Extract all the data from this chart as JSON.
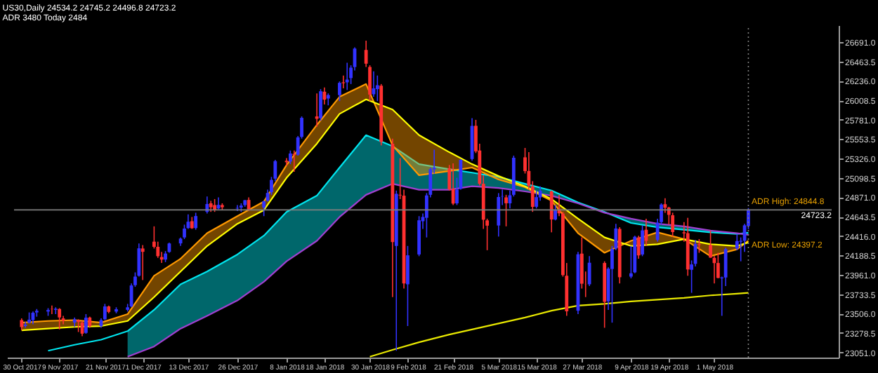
{
  "chart_data": {
    "type": "candlestick",
    "title": "US30,Daily  24534.2 24745.2 24496.8 24723.2",
    "subtitle": "ADR 3480  Today 2484",
    "x": [
      "2017-10-30",
      "2017-10-31",
      "2017-11-01",
      "2017-11-02",
      "2017-11-03",
      "2017-11-06",
      "2017-11-07",
      "2017-11-08",
      "2017-11-09",
      "2017-11-10",
      "2017-11-13",
      "2017-11-14",
      "2017-11-15",
      "2017-11-16",
      "2017-11-17",
      "2017-11-20",
      "2017-11-21",
      "2017-11-22",
      "2017-11-24",
      "2017-11-27",
      "2017-11-28",
      "2017-11-29",
      "2017-11-30",
      "2017-12-01",
      "2017-12-04",
      "2017-12-05",
      "2017-12-06",
      "2017-12-07",
      "2017-12-08",
      "2017-12-11",
      "2017-12-12",
      "2017-12-13",
      "2017-12-14",
      "2017-12-15",
      "2017-12-18",
      "2017-12-19",
      "2017-12-20",
      "2017-12-21",
      "2017-12-22",
      "2017-12-26",
      "2017-12-27",
      "2017-12-28",
      "2017-12-29",
      "2018-01-02",
      "2018-01-03",
      "2018-01-04",
      "2018-01-05",
      "2018-01-08",
      "2018-01-09",
      "2018-01-10",
      "2018-01-11",
      "2018-01-12",
      "2018-01-16",
      "2018-01-17",
      "2018-01-18",
      "2018-01-19",
      "2018-01-22",
      "2018-01-23",
      "2018-01-24",
      "2018-01-25",
      "2018-01-26",
      "2018-01-29",
      "2018-01-30",
      "2018-01-31",
      "2018-02-01",
      "2018-02-02",
      "2018-02-05",
      "2018-02-06",
      "2018-02-07",
      "2018-02-08",
      "2018-02-09",
      "2018-02-12",
      "2018-02-13",
      "2018-02-14",
      "2018-02-15",
      "2018-02-16",
      "2018-02-20",
      "2018-02-21",
      "2018-02-22",
      "2018-02-23",
      "2018-02-26",
      "2018-02-27",
      "2018-02-28",
      "2018-03-01",
      "2018-03-02",
      "2018-03-05",
      "2018-03-06",
      "2018-03-07",
      "2018-03-08",
      "2018-03-09",
      "2018-03-12",
      "2018-03-13",
      "2018-03-14",
      "2018-03-15",
      "2018-03-16",
      "2018-03-19",
      "2018-03-20",
      "2018-03-21",
      "2018-03-22",
      "2018-03-23",
      "2018-03-26",
      "2018-03-27",
      "2018-03-28",
      "2018-03-29",
      "2018-04-02",
      "2018-04-03",
      "2018-04-04",
      "2018-04-05",
      "2018-04-06",
      "2018-04-09",
      "2018-04-10",
      "2018-04-11",
      "2018-04-12",
      "2018-04-13",
      "2018-04-16",
      "2018-04-17",
      "2018-04-18",
      "2018-04-19",
      "2018-04-20",
      "2018-04-23",
      "2018-04-24",
      "2018-04-25",
      "2018-04-26",
      "2018-04-27",
      "2018-04-30",
      "2018-05-01",
      "2018-05-02",
      "2018-05-03",
      "2018-05-04",
      "2018-05-07",
      "2018-05-08",
      "2018-05-09",
      "2018-05-10"
    ],
    "ohlc": [
      [
        23430,
        23450,
        23310,
        23348
      ],
      [
        23360,
        23410,
        23340,
        23377
      ],
      [
        23400,
        23520,
        23390,
        23435
      ],
      [
        23430,
        23530,
        23380,
        23516
      ],
      [
        23520,
        23560,
        23470,
        23539
      ],
      [
        23530,
        23570,
        23480,
        23548
      ],
      [
        23560,
        23600,
        23500,
        23557
      ],
      [
        23550,
        23580,
        23500,
        23563
      ],
      [
        23560,
        23570,
        23320,
        23461
      ],
      [
        23450,
        23480,
        23380,
        23422
      ],
      [
        23400,
        23460,
        23350,
        23439
      ],
      [
        23430,
        23440,
        23290,
        23409
      ],
      [
        23400,
        23420,
        23240,
        23271
      ],
      [
        23280,
        23500,
        23270,
        23458
      ],
      [
        23460,
        23470,
        23340,
        23358
      ],
      [
        23360,
        23450,
        23340,
        23430
      ],
      [
        23440,
        23620,
        23430,
        23590
      ],
      [
        23590,
        23600,
        23510,
        23526
      ],
      [
        23530,
        23580,
        23510,
        23557
      ],
      [
        23550,
        23620,
        23530,
        23580
      ],
      [
        23590,
        23860,
        23580,
        23836
      ],
      [
        23840,
        23990,
        23820,
        23940
      ],
      [
        23950,
        24330,
        23940,
        24272
      ],
      [
        24270,
        24310,
        23900,
        24231
      ],
      [
        24350,
        24530,
        24270,
        24290
      ],
      [
        24290,
        24350,
        24160,
        24180
      ],
      [
        24170,
        24230,
        24100,
        24140
      ],
      [
        24140,
        24240,
        24110,
        24211
      ],
      [
        24230,
        24340,
        24220,
        24329
      ],
      [
        24330,
        24400,
        24300,
        24386
      ],
      [
        24400,
        24550,
        24380,
        24504
      ],
      [
        24510,
        24670,
        24500,
        24585
      ],
      [
        24590,
        24640,
        24500,
        24508
      ],
      [
        24510,
        24690,
        24490,
        24651
      ],
      [
        24700,
        24880,
        24680,
        24792
      ],
      [
        24800,
        24830,
        24700,
        24754
      ],
      [
        24780,
        24850,
        24700,
        24726
      ],
      [
        24740,
        24870,
        24730,
        24782
      ],
      [
        24780,
        24800,
        24720,
        24754
      ],
      [
        24740,
        24780,
        24710,
        24746
      ],
      [
        24750,
        24800,
        24700,
        24774
      ],
      [
        24780,
        24840,
        24760,
        24837
      ],
      [
        24840,
        24870,
        24710,
        24719
      ],
      [
        24750,
        24830,
        24650,
        24824
      ],
      [
        24830,
        24960,
        24820,
        24922
      ],
      [
        24930,
        25110,
        24900,
        25075
      ],
      [
        25090,
        25310,
        25060,
        25295
      ],
      [
        25300,
        25330,
        25240,
        25283
      ],
      [
        25290,
        25420,
        25260,
        25385
      ],
      [
        25380,
        25420,
        25170,
        25369
      ],
      [
        25370,
        25590,
        25360,
        25574
      ],
      [
        25580,
        25820,
        25560,
        25803
      ],
      [
        25820,
        26090,
        25700,
        25792
      ],
      [
        25800,
        26140,
        25770,
        26115
      ],
      [
        26110,
        26160,
        25960,
        26017
      ],
      [
        26030,
        26090,
        25950,
        26071
      ],
      [
        26070,
        26230,
        26000,
        26214
      ],
      [
        26220,
        26300,
        26150,
        26210
      ],
      [
        26220,
        26450,
        26130,
        26252
      ],
      [
        26270,
        26420,
        26200,
        26392
      ],
      [
        26400,
        26630,
        26360,
        26616
      ],
      [
        26600,
        26710,
        26400,
        26439
      ],
      [
        26400,
        26420,
        26000,
        26076
      ],
      [
        26080,
        26350,
        26050,
        26149
      ],
      [
        26140,
        26300,
        26000,
        26186
      ],
      [
        26180,
        26200,
        25480,
        25520
      ],
      [
        25500,
        25560,
        23700,
        24345
      ],
      [
        24300,
        24950,
        23070,
        24912
      ],
      [
        24900,
        25330,
        24850,
        24893
      ],
      [
        24890,
        24960,
        23800,
        23860
      ],
      [
        23850,
        24300,
        23360,
        24190
      ],
      [
        24200,
        24650,
        24180,
        24601
      ],
      [
        24590,
        24680,
        24500,
        24640
      ],
      [
        24630,
        24920,
        24400,
        24893
      ],
      [
        24900,
        25220,
        24870,
        25200
      ],
      [
        25200,
        25430,
        25150,
        25219
      ],
      [
        25210,
        25250,
        24950,
        24964
      ],
      [
        24970,
        25270,
        24780,
        24797
      ],
      [
        24800,
        25100,
        24780,
        24962
      ],
      [
        24970,
        25320,
        24960,
        25310
      ],
      [
        25320,
        25800,
        25300,
        25709
      ],
      [
        25710,
        25780,
        25390,
        25410
      ],
      [
        25420,
        25500,
        25010,
        25029
      ],
      [
        25030,
        25130,
        24500,
        24608
      ],
      [
        24600,
        24620,
        24250,
        24538
      ],
      [
        24540,
        24920,
        24410,
        24874
      ],
      [
        24880,
        24960,
        24780,
        24884
      ],
      [
        24870,
        24900,
        24530,
        24801
      ],
      [
        24800,
        24950,
        24740,
        24895
      ],
      [
        24900,
        25360,
        24880,
        25335
      ],
      [
        25340,
        25450,
        25150,
        25178
      ],
      [
        25180,
        25400,
        24960,
        25007
      ],
      [
        25000,
        25060,
        24700,
        24759
      ],
      [
        24760,
        24950,
        24740,
        24873
      ],
      [
        24870,
        25000,
        24830,
        24947
      ],
      [
        24940,
        24950,
        24460,
        24611
      ],
      [
        24610,
        24780,
        24600,
        24727
      ],
      [
        24730,
        24900,
        24650,
        24683
      ],
      [
        24680,
        24700,
        23940,
        23958
      ],
      [
        23950,
        24100,
        23480,
        23533
      ],
      [
        23540,
        24230,
        23500,
        24202
      ],
      [
        24210,
        24400,
        23800,
        23857
      ],
      [
        23850,
        24000,
        23700,
        23849
      ],
      [
        23850,
        24180,
        23830,
        24103
      ],
      [
        24100,
        24120,
        23340,
        23644
      ],
      [
        23650,
        24050,
        23550,
        24033
      ],
      [
        24030,
        24300,
        23400,
        24264
      ],
      [
        24270,
        24560,
        24250,
        24505
      ],
      [
        24500,
        24520,
        23860,
        23933
      ],
      [
        23940,
        24300,
        23920,
        23979
      ],
      [
        23990,
        24420,
        23980,
        24408
      ],
      [
        24400,
        24420,
        24150,
        24189
      ],
      [
        24200,
        24540,
        24180,
        24483
      ],
      [
        24490,
        24620,
        24300,
        24360
      ],
      [
        24370,
        24620,
        24350,
        24573
      ],
      [
        24580,
        24800,
        24550,
        24786
      ],
      [
        24790,
        24860,
        24690,
        24748
      ],
      [
        24750,
        24760,
        24550,
        24665
      ],
      [
        24660,
        24690,
        24410,
        24463
      ],
      [
        24460,
        24580,
        24350,
        24448
      ],
      [
        24450,
        24630,
        23950,
        24024
      ],
      [
        24020,
        24130,
        23750,
        24083
      ],
      [
        24090,
        24370,
        24060,
        24322
      ],
      [
        24320,
        24380,
        24220,
        24311
      ],
      [
        24310,
        24480,
        24160,
        24163
      ],
      [
        24160,
        24180,
        23860,
        24099
      ],
      [
        24100,
        24220,
        23920,
        23925
      ],
      [
        23920,
        23940,
        23480,
        23930
      ],
      [
        23930,
        24280,
        23830,
        24263
      ],
      [
        24270,
        24440,
        24250,
        24357
      ],
      [
        24350,
        24400,
        24120,
        24360
      ],
      [
        24360,
        24560,
        24230,
        24542
      ],
      [
        24534.2,
        24745.2,
        24496.8,
        24723.2
      ]
    ],
    "colors": [
      "#ff3030",
      "#3232ff",
      "#3232ff",
      "#3232ff",
      "#3232ff",
      "#3232ff",
      "#ff3030",
      "#3232ff",
      "#ff3030",
      "#ff3030",
      "#3232ff",
      "#ff3030",
      "#ff3030",
      "#3232ff",
      "#ff3030",
      "#3232ff",
      "#3232ff",
      "#ff3030",
      "#3232ff",
      "#3232ff",
      "#3232ff",
      "#3232ff",
      "#3232ff",
      "#ff3030",
      "#ff3030",
      "#ff3030",
      "#ff3030",
      "#3232ff",
      "#3232ff",
      "#3232ff",
      "#3232ff",
      "#3232ff",
      "#ff3030",
      "#3232ff",
      "#3232ff",
      "#ff3030",
      "#ff3030",
      "#3232ff",
      "#ff3030",
      "#3232ff",
      "#3232ff",
      "#3232ff",
      "#ff3030",
      "#3232ff",
      "#3232ff",
      "#3232ff",
      "#3232ff",
      "#ff3030",
      "#3232ff",
      "#ff3030",
      "#3232ff",
      "#3232ff",
      "#ff3030",
      "#3232ff",
      "#ff3030",
      "#3232ff",
      "#3232ff",
      "#ff3030",
      "#3232ff",
      "#3232ff",
      "#3232ff",
      "#ff3030",
      "#ff3030",
      "#3232ff",
      "#3232ff",
      "#ff3030",
      "#ff3030",
      "#3232ff",
      "#ff3030",
      "#ff3030",
      "#3232ff",
      "#3232ff",
      "#3232ff",
      "#3232ff",
      "#3232ff",
      "#3232ff",
      "#ff3030",
      "#ff3030",
      "#3232ff",
      "#3232ff",
      "#3232ff",
      "#ff3030",
      "#ff3030",
      "#ff3030",
      "#ff3030",
      "#3232ff",
      "#3232ff",
      "#ff3030",
      "#3232ff",
      "#3232ff",
      "#ff3030",
      "#ff3030",
      "#ff3030",
      "#3232ff",
      "#3232ff",
      "#ff3030",
      "#3232ff",
      "#ff3030",
      "#ff3030",
      "#ff3030",
      "#3232ff",
      "#ff3030",
      "#ff3030",
      "#3232ff",
      "#ff3030",
      "#3232ff",
      "#3232ff",
      "#3232ff",
      "#ff3030",
      "#3232ff",
      "#3232ff",
      "#ff3030",
      "#3232ff",
      "#ff3030",
      "#3232ff",
      "#3232ff",
      "#ff3030",
      "#ff3030",
      "#ff3030",
      "#ff3030",
      "#ff3030",
      "#3232ff",
      "#3232ff",
      "#ff3030",
      "#ff3030",
      "#ff3030",
      "#ff3030",
      "#3232ff",
      "#3232ff",
      "#3232ff",
      "#3232ff",
      "#3232ff",
      "#3232ff"
    ],
    "series": [
      {
        "type": "line",
        "color": "#00e5ee",
        "x": [
          "2017-11-06",
          "2017-11-13",
          "2017-11-20",
          "2017-11-27",
          "2017-12-04",
          "2017-12-11",
          "2017-12-18",
          "2017-12-26",
          "2018-01-02",
          "2018-01-08",
          "2018-01-16",
          "2018-01-22",
          "2018-01-29",
          "2018-02-05",
          "2018-02-12",
          "2018-02-20",
          "2018-02-26",
          "2018-03-05",
          "2018-03-12",
          "2018-03-19",
          "2018-03-26",
          "2018-04-02",
          "2018-04-09",
          "2018-04-16",
          "2018-04-23",
          "2018-04-30",
          "2018-05-07",
          "2018-05-10"
        ],
        "values": [
          23070,
          23140,
          23200,
          23300,
          23550,
          23850,
          24000,
          24200,
          24420,
          24700,
          24890,
          25220,
          25600,
          25470,
          25260,
          25200,
          25160,
          25110,
          25030,
          24950,
          24810,
          24700,
          24570,
          24520,
          24490,
          24460,
          24440,
          24455
        ],
        "lower": [
          null,
          null,
          null,
          23000,
          23120,
          23330,
          23480,
          23660,
          23880,
          24120,
          24360,
          24640,
          24900,
          25030,
          24960,
          24960,
          25000,
          24980,
          24940,
          24890,
          24800,
          24690,
          24620,
          24560,
          24530,
          24480,
          24450,
          24430
        ],
        "upper": [
          null,
          null,
          null,
          23300,
          23550,
          23850,
          24000,
          24200,
          24420,
          24700,
          24890,
          25220,
          25600,
          25470,
          25260,
          25200,
          25160,
          25110,
          25030,
          24950,
          24810,
          24700,
          24570,
          24520,
          24490,
          24460,
          24440,
          24455
        ]
      },
      {
        "type": "line",
        "color": "#a040d0",
        "x": [
          "2017-11-27",
          "2017-12-04",
          "2017-12-11",
          "2017-12-18",
          "2017-12-26",
          "2018-01-02",
          "2018-01-08",
          "2018-01-16",
          "2018-01-22",
          "2018-01-29",
          "2018-02-05",
          "2018-02-12",
          "2018-02-20",
          "2018-02-26",
          "2018-03-05",
          "2018-03-12",
          "2018-03-19",
          "2018-03-26",
          "2018-04-02",
          "2018-04-09",
          "2018-04-16",
          "2018-04-23",
          "2018-04-30",
          "2018-05-07",
          "2018-05-10"
        ],
        "values": [
          23000,
          23120,
          23330,
          23480,
          23660,
          23880,
          24120,
          24360,
          24640,
          24900,
          25030,
          24960,
          24960,
          25000,
          24980,
          24940,
          24890,
          24800,
          24690,
          24620,
          24560,
          24530,
          24480,
          24450,
          24430
        ]
      },
      {
        "type": "line",
        "color": "#ff9900",
        "x": [
          "2017-10-30",
          "2017-11-06",
          "2017-11-13",
          "2017-11-20",
          "2017-11-27",
          "2017-12-04",
          "2017-12-11",
          "2017-12-18",
          "2017-12-26",
          "2018-01-02",
          "2018-01-08",
          "2018-01-16",
          "2018-01-22",
          "2018-01-29",
          "2018-02-05",
          "2018-02-12",
          "2018-02-20",
          "2018-02-26",
          "2018-03-05",
          "2018-03-12",
          "2018-03-19",
          "2018-03-26",
          "2018-04-02",
          "2018-04-09",
          "2018-04-16",
          "2018-04-23",
          "2018-04-30",
          "2018-05-07",
          "2018-05-10"
        ],
        "values": [
          23400,
          23420,
          23430,
          23400,
          23500,
          23950,
          24150,
          24450,
          24650,
          24820,
          25250,
          25720,
          26050,
          26200,
          25480,
          25130,
          25180,
          25220,
          25080,
          24990,
          24830,
          24450,
          24220,
          24360,
          24460,
          24380,
          24180,
          24260,
          24360
        ],
        "lower": [
          23310,
          23330,
          23350,
          23360,
          23420,
          23700,
          24000,
          24300,
          24560,
          24720,
          25100,
          25500,
          25850,
          26020,
          25900,
          25600,
          25400,
          25260,
          25120,
          25000,
          24850,
          24620,
          24400,
          24300,
          24320,
          24380,
          24320,
          24300,
          24340
        ],
        "upper": [
          23400,
          23420,
          23430,
          23400,
          23500,
          23950,
          24150,
          24450,
          24650,
          24820,
          25250,
          25720,
          26050,
          26200,
          25480,
          25130,
          25180,
          25220,
          25080,
          24990,
          24830,
          24450,
          24220,
          24360,
          24460,
          24380,
          24180,
          24260,
          24360
        ]
      },
      {
        "type": "line",
        "color": "#ffff00",
        "x": [
          "2017-10-30",
          "2017-11-06",
          "2017-11-13",
          "2017-11-20",
          "2017-11-27",
          "2017-12-04",
          "2017-12-11",
          "2017-12-18",
          "2017-12-26",
          "2018-01-02",
          "2018-01-08",
          "2018-01-16",
          "2018-01-22",
          "2018-01-29",
          "2018-02-05",
          "2018-02-12",
          "2018-02-20",
          "2018-02-26",
          "2018-03-05",
          "2018-03-12",
          "2018-03-19",
          "2018-03-26",
          "2018-04-02",
          "2018-04-09",
          "2018-04-16",
          "2018-04-23",
          "2018-04-30",
          "2018-05-07",
          "2018-05-10"
        ],
        "values": [
          23310,
          23330,
          23350,
          23360,
          23420,
          23700,
          24000,
          24300,
          24560,
          24720,
          25100,
          25500,
          25850,
          26020,
          25900,
          25600,
          25400,
          25260,
          25120,
          25000,
          24850,
          24620,
          24400,
          24300,
          24320,
          24380,
          24320,
          24300,
          24340
        ]
      },
      {
        "type": "line",
        "color": "#e8e800",
        "x": [
          "2018-01-30",
          "2018-02-05",
          "2018-02-12",
          "2018-02-20",
          "2018-02-26",
          "2018-03-05",
          "2018-03-12",
          "2018-03-19",
          "2018-03-26",
          "2018-04-02",
          "2018-04-09",
          "2018-04-16",
          "2018-04-23",
          "2018-04-30",
          "2018-05-07",
          "2018-05-10"
        ],
        "values": [
          23000,
          23080,
          23170,
          23260,
          23320,
          23390,
          23460,
          23540,
          23600,
          23620,
          23650,
          23670,
          23690,
          23720,
          23740,
          23750
        ]
      }
    ],
    "xlim": [
      "2017-10-28",
      "2018-06-01"
    ],
    "xticks": [
      {
        "value": "2017-10-30",
        "label": "30 Oct 2017"
      },
      {
        "value": "2017-11-09",
        "label": "9 Nov 2017"
      },
      {
        "value": "2017-11-21",
        "label": "21 Nov 2017"
      },
      {
        "value": "2017-12-01",
        "label": "1 Dec 2017"
      },
      {
        "value": "2017-12-13",
        "label": "13 Dec 2017"
      },
      {
        "value": "2017-12-26",
        "label": "26 Dec 2017"
      },
      {
        "value": "2018-01-08",
        "label": "8 Jan 2018"
      },
      {
        "value": "2018-01-18",
        "label": "18 Jan 2018"
      },
      {
        "value": "2018-01-30",
        "label": "30 Jan 2018"
      },
      {
        "value": "2018-02-09",
        "label": "9 Feb 2018"
      },
      {
        "value": "2018-02-21",
        "label": "21 Feb 2018"
      },
      {
        "value": "2018-03-05",
        "label": "5 Mar 2018"
      },
      {
        "value": "2018-03-15",
        "label": "15 Mar 2018"
      },
      {
        "value": "2018-03-27",
        "label": "27 Mar 2018"
      },
      {
        "value": "2018-04-09",
        "label": "9 Apr 2018"
      },
      {
        "value": "2018-04-19",
        "label": "19 Apr 2018"
      },
      {
        "value": "2018-05-01",
        "label": "1 May 2018"
      }
    ],
    "ylim": [
      22990,
      26890
    ],
    "yticks": [
      {
        "value": 23051,
        "label": "23051.0"
      },
      {
        "value": 23278.5,
        "label": "23278.5"
      },
      {
        "value": 23506,
        "label": "23506.0"
      },
      {
        "value": 23733.5,
        "label": "23733.5"
      },
      {
        "value": 23961,
        "label": "23961.0"
      },
      {
        "value": 24188.5,
        "label": "24188.5"
      },
      {
        "value": 24416,
        "label": "24416.0"
      },
      {
        "value": 24643.5,
        "label": "24643.5"
      },
      {
        "value": 24871,
        "label": "24871.0"
      },
      {
        "value": 25098.5,
        "label": "25098.5"
      },
      {
        "value": 25326,
        "label": "25326.0"
      },
      {
        "value": 25553.5,
        "label": "25553.5"
      },
      {
        "value": 25781,
        "label": "25781.0"
      },
      {
        "value": 26008.5,
        "label": "26008.5"
      },
      {
        "value": 26236,
        "label": "26236.0"
      },
      {
        "value": 26463.5,
        "label": "26463.5"
      },
      {
        "value": 26691,
        "label": "26691.0"
      }
    ],
    "ref_lines": [
      {
        "axis": "y",
        "value": 24723.2,
        "label": "24723.2",
        "color": "#808080"
      },
      {
        "axis": "x",
        "value": "2018-05-10",
        "color": "#808080",
        "line_style": "dotted"
      }
    ],
    "annotations": [
      "ADR High: 24844.8",
      "ADR Low: 24397.2"
    ],
    "grid": false
  }
}
